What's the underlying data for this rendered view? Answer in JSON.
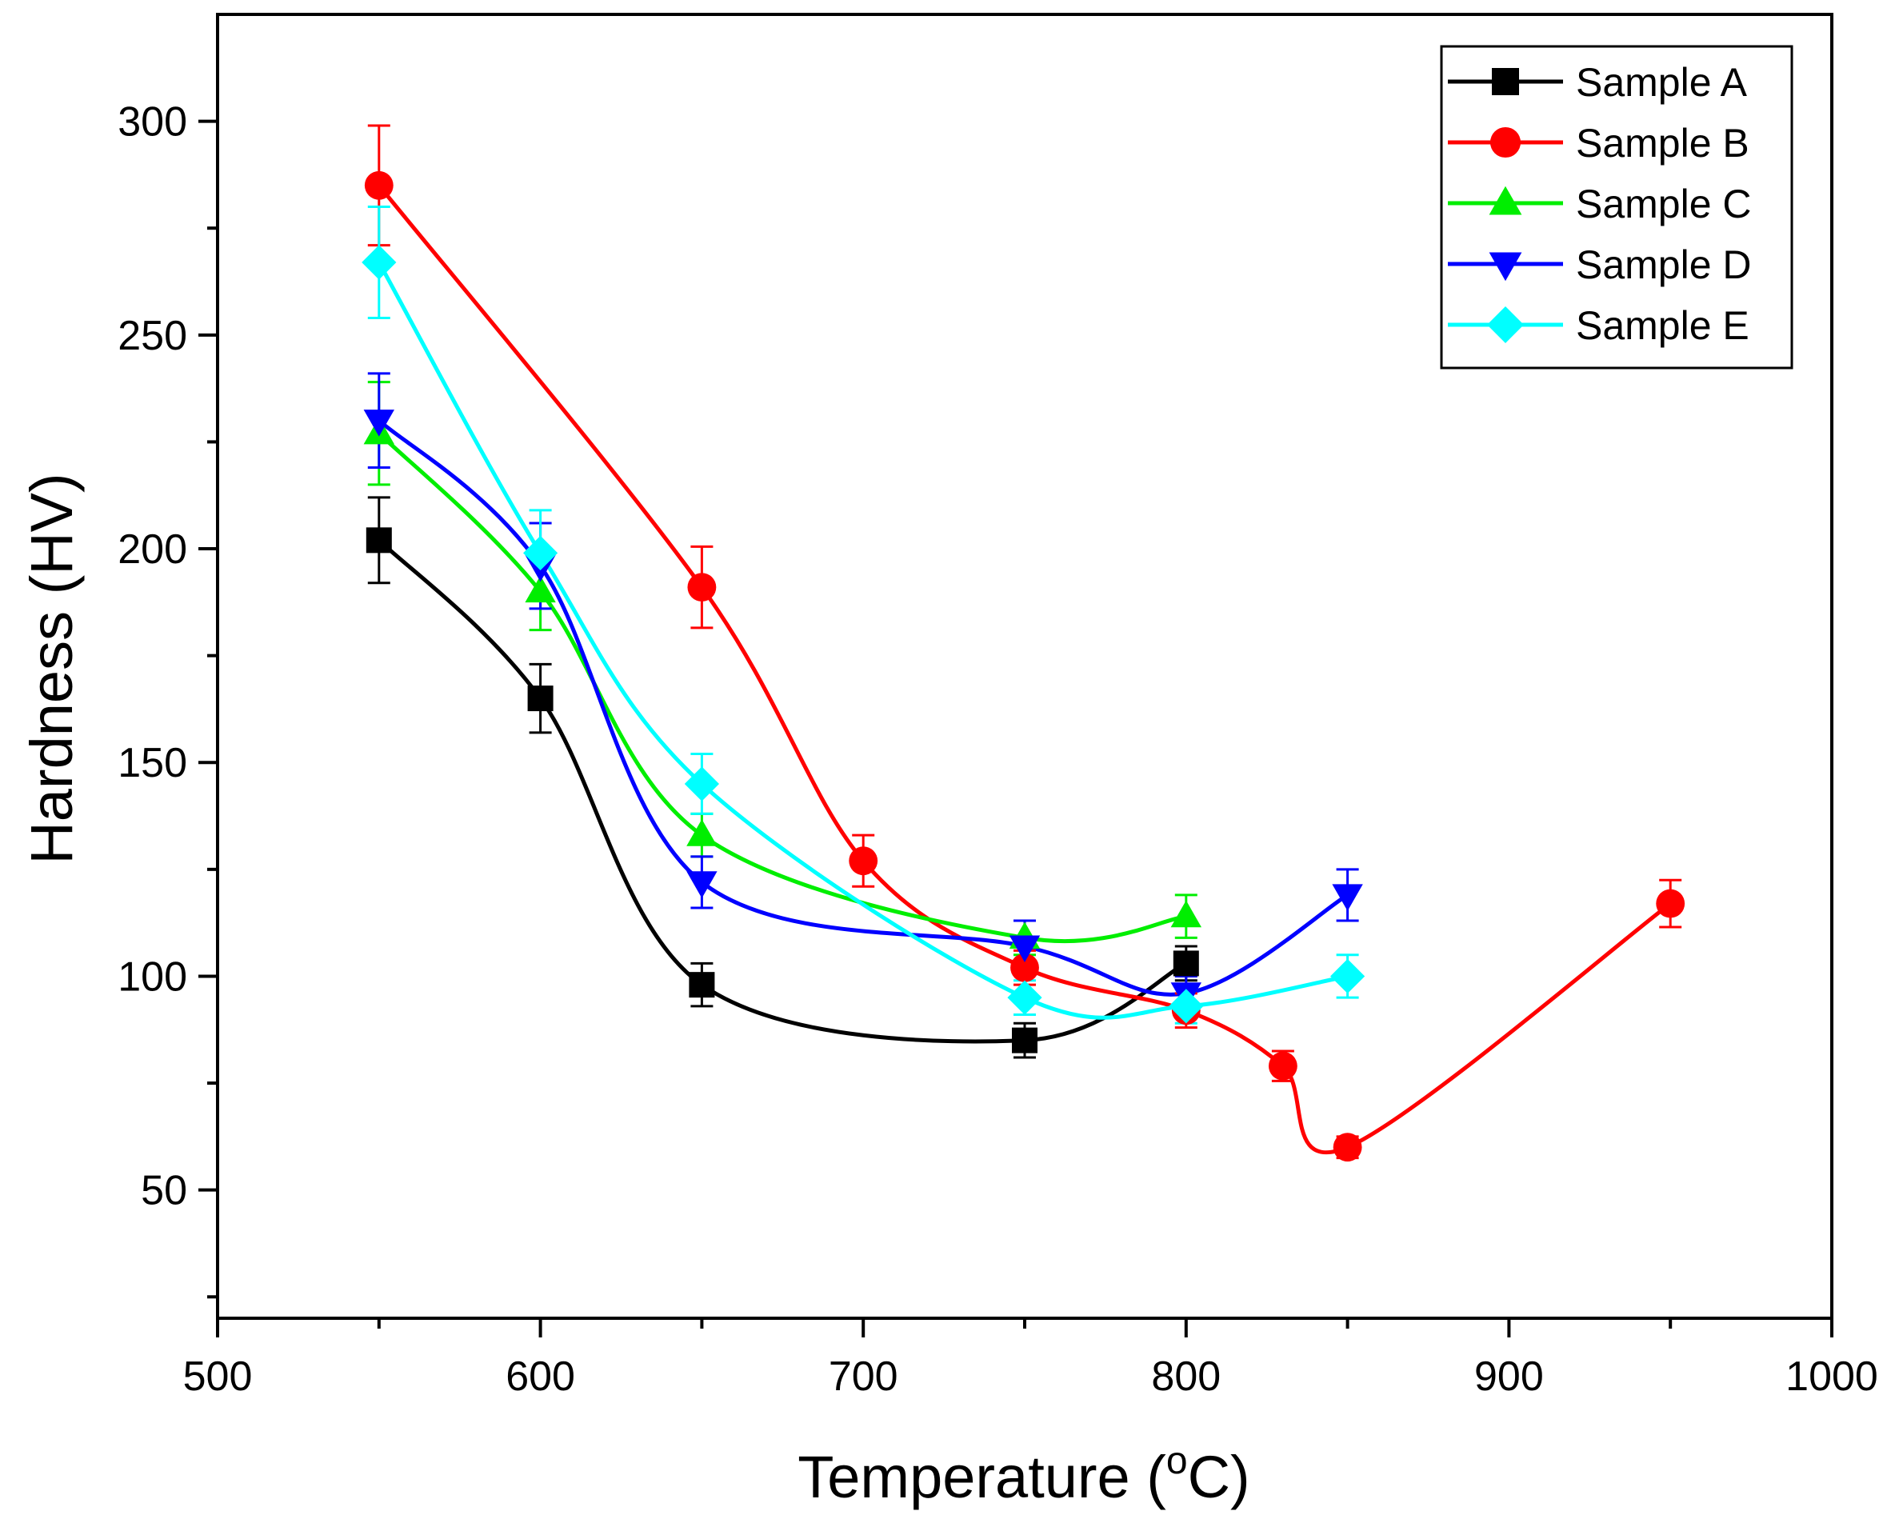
{
  "chart_data": {
    "type": "line",
    "title": "",
    "xlabel_main": "Temperature (",
    "xlabel_sup": "o",
    "xlabel_end": "C)",
    "ylabel": "Hardness (HV)",
    "xlim": [
      500,
      1000
    ],
    "ylim": [
      20,
      325
    ],
    "x_ticks": [
      500,
      600,
      700,
      800,
      900,
      1000
    ],
    "x_tick_labels": [
      "500",
      "600",
      "700",
      "800",
      "900",
      "1000"
    ],
    "x_minor_ticks": [
      550,
      650,
      750,
      850,
      950
    ],
    "y_ticks": [
      50,
      100,
      150,
      200,
      250,
      300
    ],
    "y_tick_labels": [
      "50",
      "100",
      "150",
      "200",
      "250",
      "300"
    ],
    "y_minor_ticks": [
      25,
      75,
      125,
      175,
      225,
      275
    ],
    "legend_position": "top-right",
    "series": [
      {
        "name": "Sample A",
        "color": "#000000",
        "marker": "square",
        "x": [
          550,
          600,
          650,
          750,
          800
        ],
        "y": [
          202,
          165,
          98,
          85,
          103
        ],
        "err": [
          10,
          8,
          5,
          4,
          4
        ]
      },
      {
        "name": "Sample B",
        "color": "#ff0000",
        "marker": "circle",
        "x": [
          550,
          650,
          700,
          750,
          800,
          830,
          850,
          950
        ],
        "y": [
          285,
          191,
          127,
          102,
          92,
          79,
          60,
          117
        ],
        "err": [
          14,
          9.5,
          6,
          4,
          4,
          3.5,
          2.5,
          5.5
        ]
      },
      {
        "name": "Sample C",
        "color": "#00ee00",
        "marker": "triangle-up",
        "x": [
          550,
          600,
          650,
          750,
          800
        ],
        "y": [
          227,
          190,
          133,
          109,
          114
        ],
        "err": [
          12,
          9,
          5,
          4,
          5
        ]
      },
      {
        "name": "Sample D",
        "color": "#0000ff",
        "marker": "triangle-down",
        "x": [
          550,
          600,
          650,
          750,
          800,
          850
        ],
        "y": [
          230,
          196,
          122,
          107,
          96,
          119
        ],
        "err": [
          11,
          10,
          6,
          6,
          4,
          6
        ]
      },
      {
        "name": "Sample E",
        "color": "#00ffff",
        "marker": "diamond",
        "x": [
          550,
          600,
          650,
          750,
          800,
          850
        ],
        "y": [
          267,
          199,
          145,
          95,
          93,
          100
        ],
        "err": [
          13,
          10,
          7,
          4,
          4,
          5
        ]
      }
    ]
  }
}
